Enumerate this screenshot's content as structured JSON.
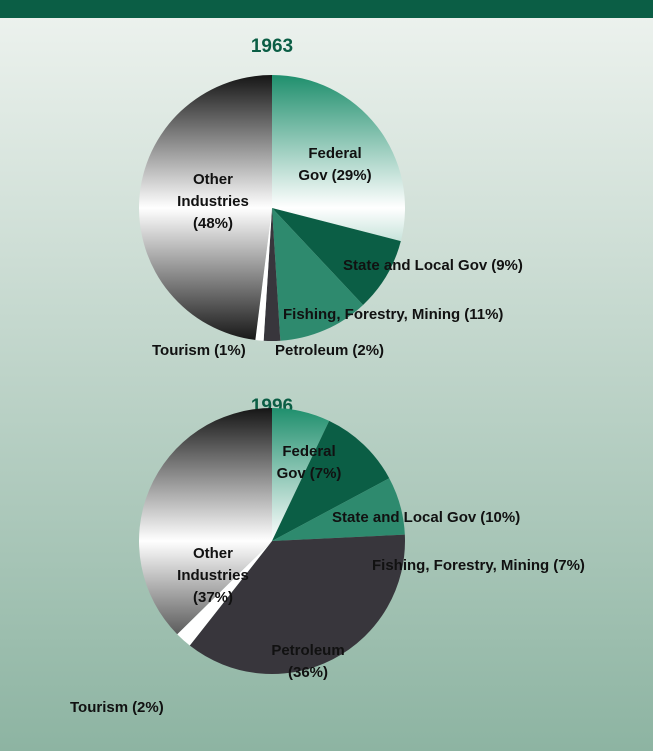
{
  "chart_data": [
    {
      "type": "pie",
      "title": "1963",
      "categories": [
        "Federal\nGov",
        "State and Local Gov",
        "Fishing, Forestry, Mining",
        "Petroleum",
        "Tourism",
        "Other\nIndustries"
      ],
      "values": [
        29,
        9,
        11,
        2,
        1,
        48
      ],
      "value_labels": [
        "(29%)",
        "(9%)",
        "(11%)",
        "(2%)",
        "(1%)",
        "(48%)"
      ],
      "colors": [
        "#1f8f6d",
        "#0b5e45",
        "#2e8a6e",
        "#38363c",
        "#ffffff",
        "#161616"
      ]
    },
    {
      "type": "pie",
      "title": "1996",
      "categories": [
        "Federal\nGov",
        "State and Local Gov",
        "Fishing, Forestry, Mining",
        "Petroleum",
        "Tourism",
        "Other\nIndustries"
      ],
      "values": [
        7,
        10,
        7,
        36,
        2,
        37
      ],
      "value_labels": [
        "(7%)",
        "(10%)",
        "(7%)",
        "(36%)",
        "(2%)",
        "(37%)"
      ],
      "colors": [
        "#1f8f6d",
        "#0b5e45",
        "#2e8a6e",
        "#38363c",
        "#ffffff",
        "#161616"
      ]
    }
  ]
}
